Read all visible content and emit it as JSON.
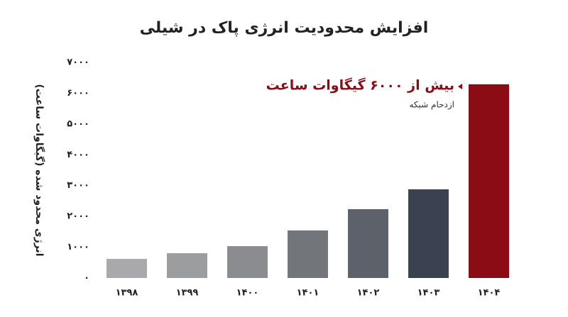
{
  "chart_data": {
    "type": "bar",
    "title": "افزایش محدودیت انرژی پاک در شیلی",
    "y_label": "انرژی محدود شده (گیگاوات ساعت)",
    "categories": [
      "۱۳۹۸",
      "۱۳۹۹",
      "۱۴۰۰",
      "۱۴۰۱",
      "۱۴۰۲",
      "۱۴۰۳",
      "۱۴۰۴"
    ],
    "values": [
      620,
      805,
      1035,
      1545,
      2235,
      2880,
      6290
    ],
    "colors": [
      "#a9a9ab",
      "#9c9d9f",
      "#8a8c8f",
      "#72767b",
      "#5d626a",
      "#3a4252",
      "#8b0c14"
    ],
    "ylim": [
      0,
      7000
    ],
    "yticks": [
      {
        "value": 0,
        "label": "۰"
      },
      {
        "value": 1000,
        "label": "۱۰۰۰"
      },
      {
        "value": 2000,
        "label": "۲۰۰۰"
      },
      {
        "value": 3000,
        "label": "۳۰۰۰"
      },
      {
        "value": 4000,
        "label": "۴۰۰۰"
      },
      {
        "value": 5000,
        "label": "۵۰۰۰"
      },
      {
        "value": 6000,
        "label": "۶۰۰۰"
      },
      {
        "value": 7000,
        "label": "۷۰۰۰"
      }
    ],
    "grid": false,
    "annotation": {
      "title": "بیش از ۶۰۰۰ گیگاوات ساعت",
      "subtitle": "ازدحام شبکه",
      "color": "#8b0c14"
    }
  }
}
